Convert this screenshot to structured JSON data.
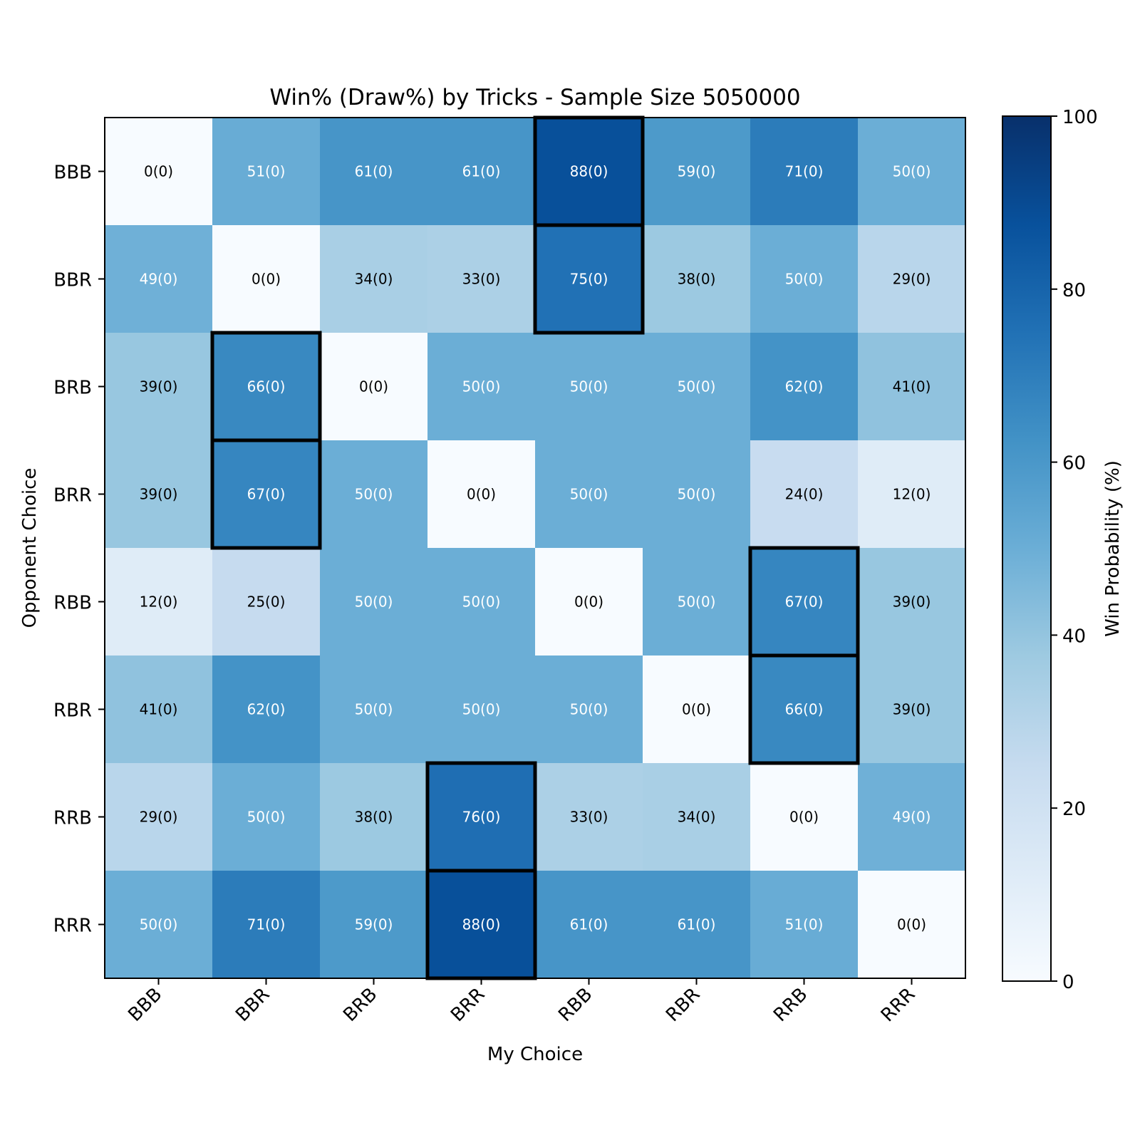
{
  "chart_data": {
    "type": "heatmap",
    "title": "Win% (Draw%) by Tricks - Sample Size 5050000",
    "xlabel": "My Choice",
    "ylabel": "Opponent Choice",
    "x_categories": [
      "BBB",
      "BBR",
      "BRB",
      "BRR",
      "RBB",
      "RBR",
      "RRB",
      "RRR"
    ],
    "y_categories": [
      "BBB",
      "BBR",
      "BRB",
      "BRR",
      "RBB",
      "RBR",
      "RRB",
      "RRR"
    ],
    "win": [
      [
        0,
        51,
        61,
        61,
        88,
        59,
        71,
        50
      ],
      [
        49,
        0,
        34,
        33,
        75,
        38,
        50,
        29
      ],
      [
        39,
        66,
        0,
        50,
        50,
        50,
        62,
        41
      ],
      [
        39,
        67,
        50,
        0,
        50,
        50,
        24,
        12
      ],
      [
        12,
        25,
        50,
        50,
        0,
        50,
        67,
        39
      ],
      [
        41,
        62,
        50,
        50,
        50,
        0,
        66,
        39
      ],
      [
        29,
        50,
        38,
        76,
        33,
        34,
        0,
        49
      ],
      [
        50,
        71,
        59,
        88,
        61,
        61,
        51,
        0
      ]
    ],
    "draw": [
      [
        0,
        0,
        0,
        0,
        0,
        0,
        0,
        0
      ],
      [
        0,
        0,
        0,
        0,
        0,
        0,
        0,
        0
      ],
      [
        0,
        0,
        0,
        0,
        0,
        0,
        0,
        0
      ],
      [
        0,
        0,
        0,
        0,
        0,
        0,
        0,
        0
      ],
      [
        0,
        0,
        0,
        0,
        0,
        0,
        0,
        0
      ],
      [
        0,
        0,
        0,
        0,
        0,
        0,
        0,
        0
      ],
      [
        0,
        0,
        0,
        0,
        0,
        0,
        0,
        0
      ],
      [
        0,
        0,
        0,
        0,
        0,
        0,
        0,
        0
      ]
    ],
    "highlighted_cells": [
      {
        "row": "BBB",
        "col": "RBB"
      },
      {
        "row": "BBR",
        "col": "RBB"
      },
      {
        "row": "BRB",
        "col": "BBR"
      },
      {
        "row": "BRR",
        "col": "BBR"
      },
      {
        "row": "RBB",
        "col": "RRB"
      },
      {
        "row": "RBR",
        "col": "RRB"
      },
      {
        "row": "RRB",
        "col": "BRR"
      },
      {
        "row": "RRR",
        "col": "BRR"
      }
    ],
    "colorbar": {
      "label": "Win Probability (%)",
      "range": [
        0,
        100
      ],
      "ticks": [
        0,
        20,
        40,
        60,
        80,
        100
      ],
      "colormap": "Blues"
    },
    "grid": false
  }
}
